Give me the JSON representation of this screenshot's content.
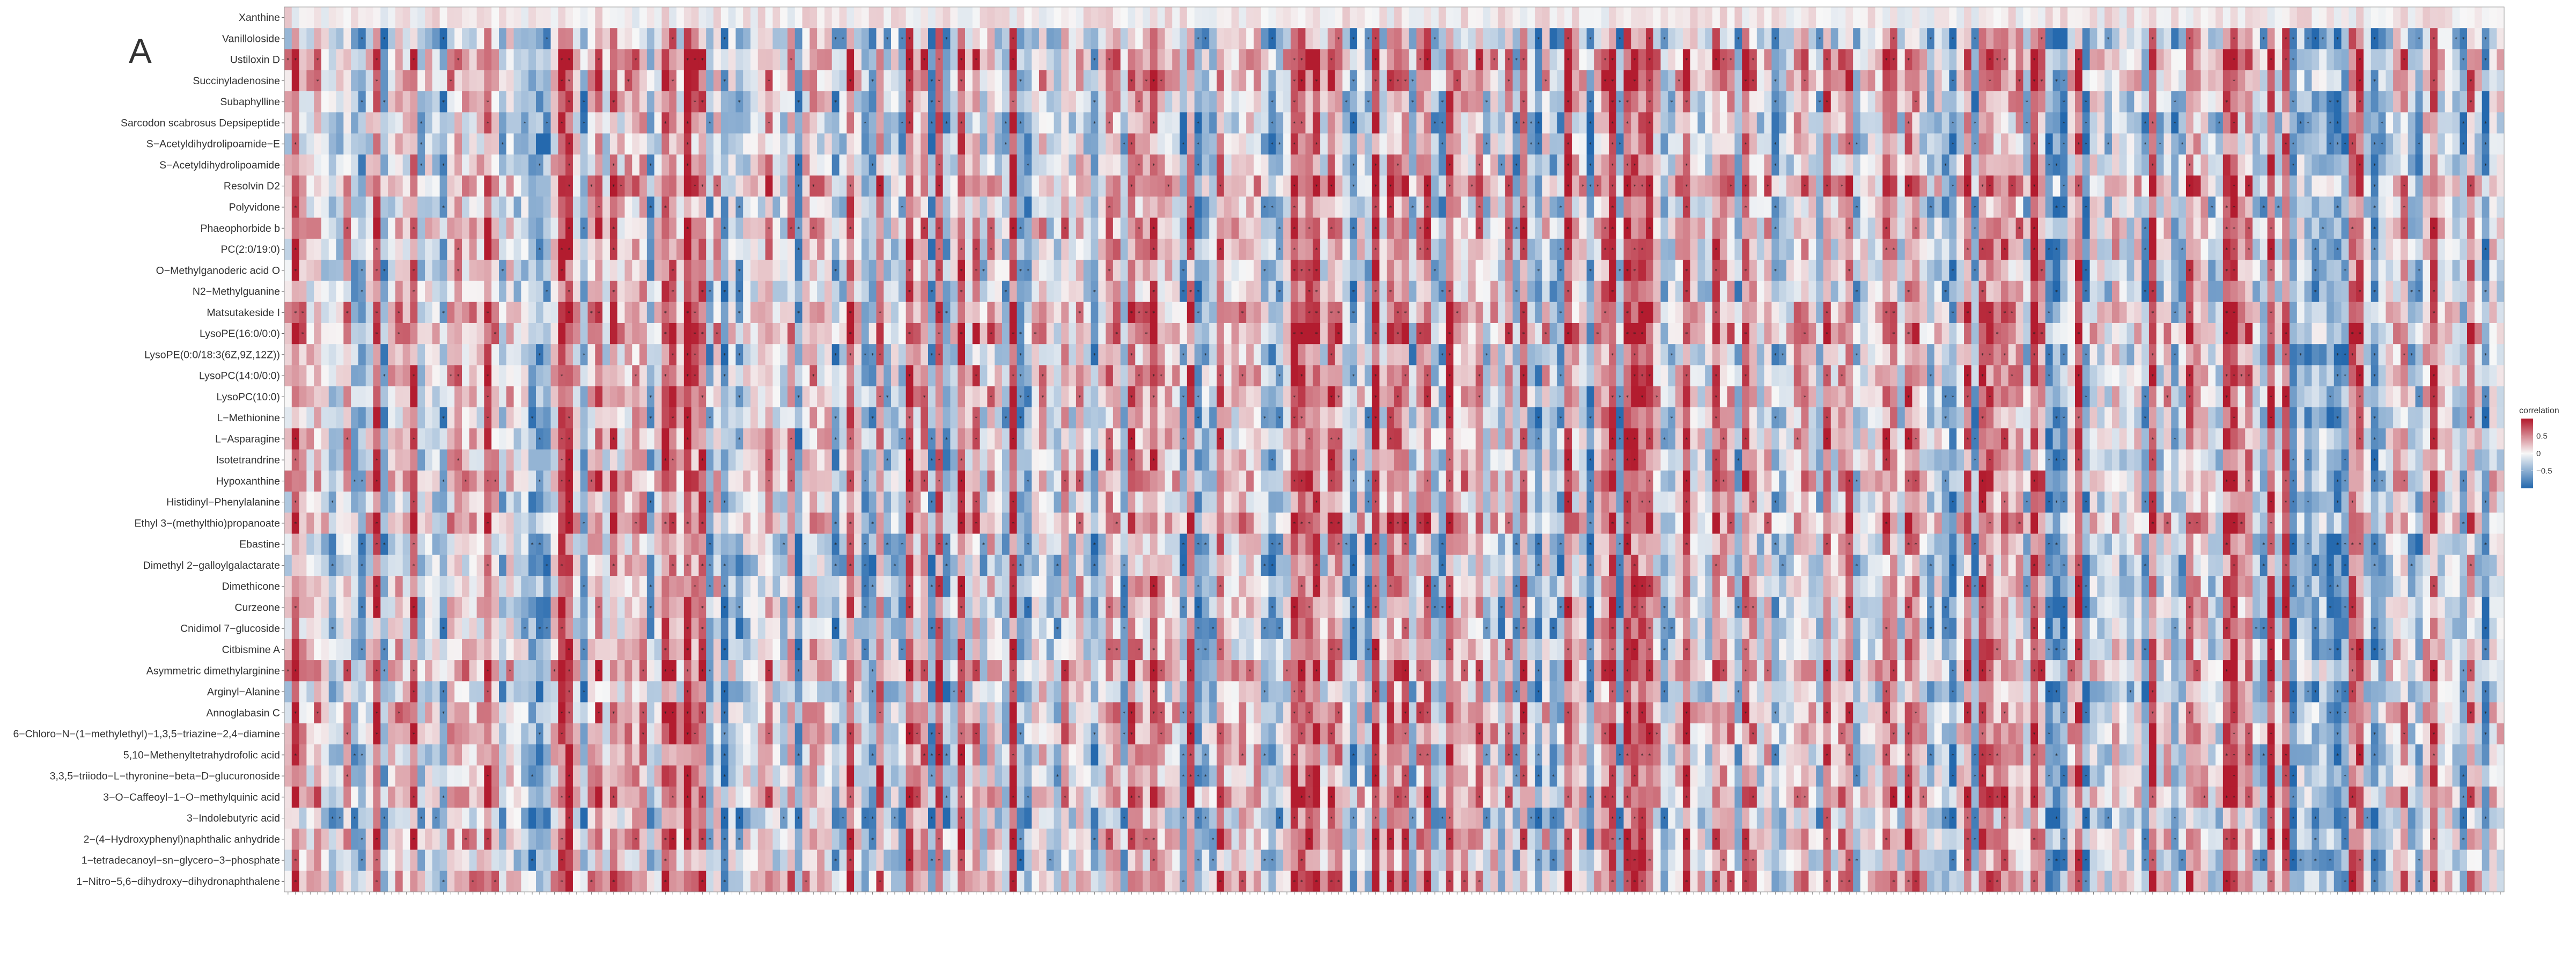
{
  "panel_letter": "A",
  "chart_data": {
    "type": "heatmap",
    "title": "",
    "xlabel": "",
    "ylabel": "",
    "rows": [
      "Xanthine",
      "Vanilloloside",
      "Ustiloxin D",
      "Succinyladenosine",
      "Subaphylline",
      "Sarcodon scabrosus Depsipeptide",
      "S−Acetyldihydrolipoamide−E",
      "S−Acetyldihydrolipoamide",
      "Resolvin D2",
      "Polyvidone",
      "Phaeophorbide b",
      "PC(2:0/19:0)",
      "O−Methylganoderic acid O",
      "N2−Methylguanine",
      "Matsutakeside I",
      "LysoPE(16:0/0:0)",
      "LysoPE(0:0/18:3(6Z,9Z,12Z))",
      "LysoPC(14:0/0:0)",
      "LysoPC(10:0)",
      "L−Methionine",
      "L−Asparagine",
      "Isotetrandrine",
      "Hypoxanthine",
      "Histidinyl−Phenylalanine",
      "Ethyl 3−(methylthio)propanoate",
      "Ebastine",
      "Dimethyl 2−galloylgalactarate",
      "Dimethicone",
      "Curzeone",
      "Cnidimol 7−glucoside",
      "Citbismine A",
      "Asymmetric dimethylarginine",
      "Arginyl−Alanine",
      "Annoglabasin C",
      "6−Chloro−N−(1−methylethyl)−1,3,5−triazine−2,4−diamine",
      "5,10−Methenyltetrahydrofolic acid",
      "3,3,5−triiodo−L−thyronine−beta−D−glucuronoside",
      "3−O−Caffeoyl−1−O−methylquinic acid",
      "3−Indolebutyric acid",
      "2−(4−Hydroxyphenyl)naphthalic anhydride",
      "1−tetradecanoyl−sn−glycero−3−phosphate",
      "1−Nitro−5,6−dihydroxy−dihydronaphthalene"
    ],
    "n_columns": 300,
    "column_labels": [],
    "values": [],
    "value_range": [
      -1,
      1
    ],
    "significance_marks": "*",
    "legend": {
      "title": "correlation",
      "ticks": [
        0.5,
        0,
        -0.5
      ],
      "tick_labels": [
        "0.5",
        "0",
        "−0.5"
      ],
      "placement": "right",
      "colors": {
        "low": "#2166ac",
        "mid": "#f7f7f7",
        "high": "#b2182b"
      }
    }
  }
}
